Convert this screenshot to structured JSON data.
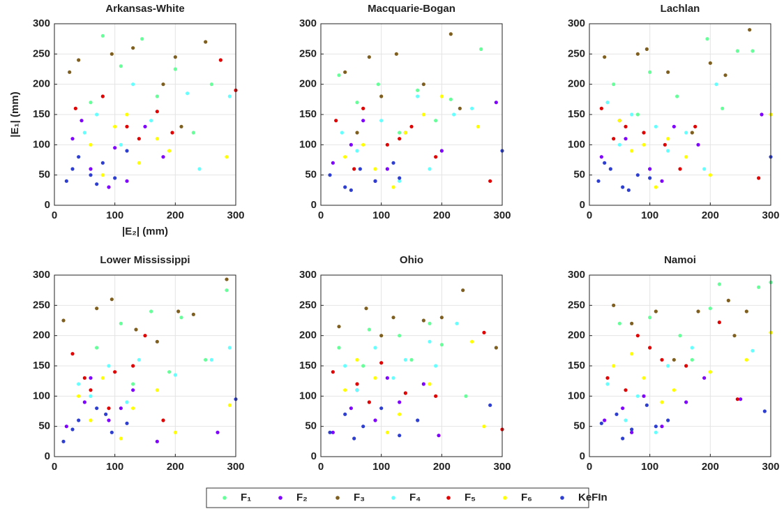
{
  "legend": [
    {
      "name": "F₁",
      "color": "#66ff99"
    },
    {
      "name": "F₂",
      "color": "#7f00ff"
    },
    {
      "name": "F₃",
      "color": "#7f5f1f"
    },
    {
      "name": "F₄",
      "color": "#66ffff"
    },
    {
      "name": "F₅",
      "color": "#e00000"
    },
    {
      "name": "F₆",
      "color": "#ffff00"
    },
    {
      "name": "KeFIn",
      "color": "#2e3fd0"
    }
  ],
  "chart_data": [
    {
      "type": "scatter",
      "title": "Arkansas-White",
      "xlabel": "|E₂| (mm)",
      "ylabel": "|E₁| (mm)",
      "xlim": [
        0,
        300
      ],
      "ylim": [
        0,
        300
      ],
      "xticks": [
        0,
        100,
        200,
        300
      ],
      "yticks": [
        0,
        50,
        100,
        150,
        200,
        250,
        300
      ],
      "grid": true,
      "series": [
        {
          "x": [
            80,
            145,
            110,
            200,
            260,
            170,
            60,
            230
          ],
          "y": [
            280,
            275,
            230,
            225,
            200,
            180,
            170,
            120
          ]
        },
        {
          "x": [
            30,
            60,
            100,
            150,
            180,
            120,
            45,
            90
          ],
          "y": [
            110,
            60,
            95,
            130,
            80,
            40,
            140,
            30
          ]
        },
        {
          "x": [
            40,
            95,
            130,
            200,
            250,
            180,
            25,
            210
          ],
          "y": [
            240,
            250,
            260,
            245,
            270,
            200,
            220,
            130
          ]
        },
        {
          "x": [
            70,
            130,
            160,
            220,
            290,
            110,
            50,
            240
          ],
          "y": [
            150,
            200,
            140,
            185,
            180,
            100,
            120,
            60
          ]
        },
        {
          "x": [
            35,
            80,
            120,
            170,
            195,
            300,
            275,
            140
          ],
          "y": [
            160,
            180,
            130,
            155,
            120,
            190,
            240,
            110
          ]
        },
        {
          "x": [
            60,
            100,
            140,
            190,
            285,
            80,
            120,
            170
          ],
          "y": [
            100,
            130,
            70,
            90,
            80,
            50,
            150,
            110
          ]
        },
        {
          "x": [
            20,
            40,
            60,
            80,
            100,
            30,
            70,
            120
          ],
          "y": [
            40,
            80,
            50,
            70,
            45,
            60,
            35,
            90
          ]
        }
      ]
    },
    {
      "type": "scatter",
      "title": "Macquarie-Bogan",
      "xlim": [
        0,
        300
      ],
      "ylim": [
        0,
        300
      ],
      "xticks": [
        0,
        100,
        200,
        300
      ],
      "yticks": [
        0,
        50,
        100,
        150,
        200,
        250,
        300
      ],
      "grid": true,
      "series": [
        {
          "x": [
            30,
            95,
            160,
            215,
            265,
            60,
            190,
            130
          ],
          "y": [
            215,
            200,
            190,
            175,
            258,
            170,
            140,
            120
          ]
        },
        {
          "x": [
            20,
            50,
            90,
            140,
            200,
            290,
            110,
            70
          ],
          "y": [
            70,
            100,
            40,
            120,
            90,
            170,
            60,
            140
          ]
        },
        {
          "x": [
            80,
            125,
            215,
            170,
            40,
            100,
            230,
            60
          ],
          "y": [
            245,
            250,
            283,
            200,
            220,
            180,
            160,
            120
          ]
        },
        {
          "x": [
            35,
            100,
            160,
            250,
            180,
            60,
            130,
            220
          ],
          "y": [
            120,
            140,
            180,
            160,
            60,
            90,
            40,
            150
          ]
        },
        {
          "x": [
            25,
            70,
            110,
            150,
            190,
            280,
            55,
            130
          ],
          "y": [
            140,
            160,
            100,
            130,
            80,
            40,
            60,
            110
          ]
        },
        {
          "x": [
            40,
            90,
            140,
            200,
            260,
            120,
            70,
            170
          ],
          "y": [
            80,
            60,
            120,
            180,
            130,
            30,
            100,
            150
          ]
        },
        {
          "x": [
            15,
            40,
            65,
            90,
            120,
            300,
            50,
            130
          ],
          "y": [
            50,
            30,
            60,
            40,
            70,
            90,
            25,
            45
          ]
        }
      ]
    },
    {
      "type": "scatter",
      "title": "Lachlan",
      "xlim": [
        0,
        300
      ],
      "ylim": [
        0,
        300
      ],
      "xticks": [
        0,
        100,
        200,
        300
      ],
      "yticks": [
        0,
        50,
        100,
        150,
        200,
        250,
        300
      ],
      "grid": true,
      "series": [
        {
          "x": [
            40,
            100,
            145,
            195,
            245,
            270,
            80,
            220
          ],
          "y": [
            200,
            220,
            180,
            275,
            255,
            255,
            150,
            160
          ]
        },
        {
          "x": [
            20,
            60,
            100,
            140,
            180,
            285,
            120,
            50
          ],
          "y": [
            80,
            110,
            60,
            130,
            100,
            150,
            40,
            140
          ]
        },
        {
          "x": [
            25,
            80,
            95,
            130,
            200,
            225,
            265,
            170
          ],
          "y": [
            245,
            250,
            258,
            220,
            235,
            215,
            290,
            120
          ]
        },
        {
          "x": [
            30,
            70,
            110,
            160,
            210,
            130,
            50,
            190
          ],
          "y": [
            170,
            150,
            130,
            120,
            200,
            90,
            100,
            60
          ]
        },
        {
          "x": [
            20,
            60,
            90,
            125,
            175,
            280,
            40,
            150
          ],
          "y": [
            160,
            130,
            120,
            100,
            130,
            45,
            110,
            60
          ]
        },
        {
          "x": [
            50,
            90,
            130,
            160,
            300,
            110,
            70,
            200
          ],
          "y": [
            140,
            100,
            110,
            80,
            150,
            30,
            90,
            50
          ]
        },
        {
          "x": [
            15,
            35,
            55,
            80,
            100,
            300,
            25,
            65
          ],
          "y": [
            40,
            60,
            30,
            50,
            45,
            80,
            70,
            25
          ]
        }
      ]
    },
    {
      "type": "scatter",
      "title": "Lower Mississippi",
      "xlim": [
        0,
        300
      ],
      "ylim": [
        0,
        300
      ],
      "xticks": [
        0,
        100,
        200,
        300
      ],
      "yticks": [
        0,
        50,
        100,
        150,
        200,
        250,
        300
      ],
      "grid": true,
      "series": [
        {
          "x": [
            110,
            160,
            210,
            285,
            250,
            130,
            70,
            190
          ],
          "y": [
            220,
            240,
            230,
            275,
            160,
            120,
            180,
            140
          ]
        },
        {
          "x": [
            20,
            50,
            90,
            130,
            170,
            270,
            110,
            60
          ],
          "y": [
            50,
            90,
            60,
            110,
            25,
            40,
            80,
            130
          ]
        },
        {
          "x": [
            15,
            70,
            95,
            135,
            205,
            230,
            285,
            170
          ],
          "y": [
            225,
            245,
            260,
            210,
            240,
            235,
            293,
            190
          ]
        },
        {
          "x": [
            40,
            90,
            140,
            200,
            260,
            290,
            120,
            60
          ],
          "y": [
            120,
            150,
            160,
            135,
            160,
            180,
            90,
            100
          ]
        },
        {
          "x": [
            30,
            60,
            100,
            150,
            180,
            90,
            50,
            130
          ],
          "y": [
            170,
            110,
            140,
            200,
            60,
            80,
            130,
            150
          ]
        },
        {
          "x": [
            40,
            80,
            130,
            170,
            290,
            110,
            60,
            200
          ],
          "y": [
            100,
            130,
            80,
            110,
            85,
            30,
            60,
            40
          ]
        },
        {
          "x": [
            15,
            40,
            70,
            95,
            120,
            300,
            30,
            85
          ],
          "y": [
            25,
            60,
            80,
            40,
            55,
            95,
            45,
            70
          ]
        }
      ]
    },
    {
      "type": "scatter",
      "title": "Ohio",
      "xlim": [
        0,
        300
      ],
      "ylim": [
        0,
        300
      ],
      "xticks": [
        0,
        100,
        200,
        300
      ],
      "yticks": [
        0,
        50,
        100,
        150,
        200,
        250,
        300
      ],
      "grid": true,
      "series": [
        {
          "x": [
            30,
            80,
            130,
            180,
            200,
            70,
            150,
            240
          ],
          "y": [
            180,
            210,
            200,
            220,
            185,
            150,
            160,
            100
          ]
        },
        {
          "x": [
            20,
            50,
            90,
            130,
            170,
            195,
            110,
            60
          ],
          "y": [
            40,
            80,
            60,
            90,
            120,
            35,
            130,
            110
          ]
        },
        {
          "x": [
            30,
            75,
            120,
            170,
            235,
            200,
            290,
            100
          ],
          "y": [
            215,
            245,
            230,
            225,
            275,
            230,
            180,
            200
          ]
        },
        {
          "x": [
            40,
            90,
            140,
            190,
            225,
            60,
            120,
            180
          ],
          "y": [
            150,
            180,
            160,
            150,
            220,
            110,
            130,
            190
          ]
        },
        {
          "x": [
            20,
            60,
            100,
            140,
            190,
            270,
            300,
            80
          ],
          "y": [
            140,
            120,
            155,
            105,
            100,
            205,
            45,
            90
          ]
        },
        {
          "x": [
            40,
            90,
            130,
            180,
            250,
            270,
            60,
            110
          ],
          "y": [
            110,
            130,
            70,
            120,
            190,
            50,
            160,
            40
          ]
        },
        {
          "x": [
            15,
            40,
            70,
            100,
            130,
            280,
            55,
            160
          ],
          "y": [
            40,
            70,
            50,
            80,
            35,
            85,
            30,
            60
          ]
        }
      ]
    },
    {
      "type": "scatter",
      "title": "Namoi",
      "xlim": [
        0,
        300
      ],
      "ylim": [
        0,
        300
      ],
      "xticks": [
        0,
        100,
        200,
        300
      ],
      "yticks": [
        0,
        50,
        100,
        150,
        200,
        250,
        300
      ],
      "grid": true,
      "series": [
        {
          "x": [
            50,
            100,
            150,
            200,
            215,
            280,
            300,
            170
          ],
          "y": [
            220,
            230,
            200,
            245,
            285,
            280,
            288,
            160
          ]
        },
        {
          "x": [
            25,
            55,
            90,
            120,
            160,
            190,
            250,
            70
          ],
          "y": [
            60,
            80,
            100,
            50,
            90,
            130,
            95,
            40
          ]
        },
        {
          "x": [
            40,
            70,
            110,
            180,
            230,
            240,
            260,
            140
          ],
          "y": [
            250,
            220,
            240,
            240,
            258,
            200,
            240,
            160
          ]
        },
        {
          "x": [
            30,
            80,
            130,
            170,
            200,
            270,
            110,
            60
          ],
          "y": [
            120,
            100,
            150,
            180,
            140,
            175,
            40,
            60
          ]
        },
        {
          "x": [
            30,
            80,
            120,
            160,
            215,
            245,
            60,
            100
          ],
          "y": [
            130,
            200,
            160,
            150,
            222,
            95,
            110,
            180
          ]
        },
        {
          "x": [
            40,
            90,
            140,
            200,
            260,
            300,
            120,
            70
          ],
          "y": [
            150,
            130,
            110,
            140,
            160,
            205,
            90,
            170
          ]
        },
        {
          "x": [
            20,
            45,
            70,
            95,
            130,
            290,
            55,
            110
          ],
          "y": [
            55,
            70,
            45,
            85,
            60,
            75,
            30,
            50
          ]
        }
      ]
    }
  ]
}
